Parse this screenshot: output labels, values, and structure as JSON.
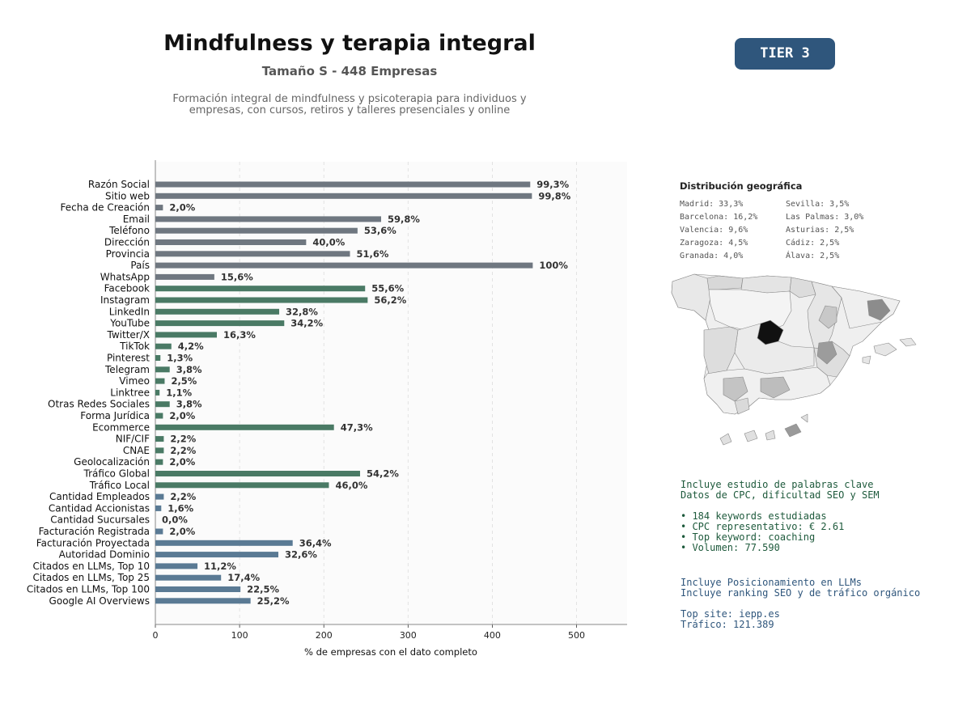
{
  "header": {
    "title": "Mindfulness y terapia integral",
    "subtitle": "Tamaño S - 448 Empresas",
    "description_lines": [
      "Formación integral de mindfulness y psicoterapia para individuos y",
      "empresas, con cursos, retiros y talleres presenciales y online"
    ],
    "tier": "TIER 3"
  },
  "colors": {
    "gray": "#6f7780",
    "green": "#4a7a65",
    "blue": "#5a7a94",
    "tier_bg": "#2f567c"
  },
  "chart_data": {
    "type": "bar",
    "orientation": "horizontal",
    "xlabel": "% de empresas con el dato completo",
    "xlim": [
      0,
      560
    ],
    "xticks": [
      0,
      100,
      200,
      300,
      400,
      500
    ],
    "grid": true,
    "categories": [
      "Razón Social",
      "Sitio web",
      "Fecha de Creación",
      "Email",
      "Teléfono",
      "Dirección",
      "Provincia",
      "País",
      "WhatsApp",
      "Facebook",
      "Instagram",
      "LinkedIn",
      "YouTube",
      "Twitter/X",
      "TikTok",
      "Pinterest",
      "Telegram",
      "Vimeo",
      "Linktree",
      "Otras Redes Sociales",
      "Forma Jurídica",
      "Ecommerce",
      "NIF/CIF",
      "CNAE",
      "Geolocalización",
      "Tráfico Global",
      "Tráfico Local",
      "Cantidad Empleados",
      "Cantidad Accionistas",
      "Cantidad Sucursales",
      "Facturación Registrada",
      "Facturación Proyectada",
      "Autoridad Dominio",
      "Citados en LLMs, Top 10",
      "Citados en LLMs, Top 25",
      "Citados en LLMs, Top 100",
      "Google AI Overviews"
    ],
    "values": [
      445,
      447,
      9,
      268,
      240,
      179,
      231,
      448,
      70,
      249,
      252,
      147,
      153,
      73,
      19,
      6,
      17,
      11,
      5,
      17,
      9,
      212,
      10,
      10,
      9,
      243,
      206,
      10,
      7,
      0,
      9,
      163,
      146,
      50,
      78,
      101,
      113
    ],
    "labels": [
      "99,3%",
      "99,8%",
      "2,0%",
      "59,8%",
      "53,6%",
      "40,0%",
      "51,6%",
      "100%",
      "15,6%",
      "55,6%",
      "56,2%",
      "32,8%",
      "34,2%",
      "16,3%",
      "4,2%",
      "1,3%",
      "3,8%",
      "2,5%",
      "1,1%",
      "3,8%",
      "2,0%",
      "47,3%",
      "2,2%",
      "2,2%",
      "2,0%",
      "54,2%",
      "46,0%",
      "2,2%",
      "1,6%",
      "0,0%",
      "2,0%",
      "36,4%",
      "32,6%",
      "11,2%",
      "17,4%",
      "22,5%",
      "25,2%"
    ],
    "groups": [
      "gray",
      "gray",
      "gray",
      "gray",
      "gray",
      "gray",
      "gray",
      "gray",
      "gray",
      "green",
      "green",
      "green",
      "green",
      "green",
      "green",
      "green",
      "green",
      "green",
      "green",
      "green",
      "green",
      "green",
      "green",
      "green",
      "green",
      "green",
      "green",
      "blue",
      "blue",
      "blue",
      "blue",
      "blue",
      "blue",
      "blue",
      "blue",
      "blue",
      "blue"
    ]
  },
  "geo": {
    "title": "Distribución geográfica",
    "col1": [
      "Madrid: 33,3%",
      "Barcelona: 16,2%",
      "Valencia: 9,6%",
      "Zaragoza: 4,5%",
      "Granada: 4,0%"
    ],
    "col2": [
      "Sevilla: 3,5%",
      "Las Palmas: 3,0%",
      "Asturias: 2,5%",
      "Cádiz: 2,5%",
      "Álava: 2,5%"
    ]
  },
  "seo": {
    "line1": "Incluye estudio de palabras clave",
    "line2": "Datos de CPC, dificultad SEO y SEM",
    "bullet1": "• 184 keywords estudiadas",
    "bullet2": "• CPC representativo: € 2.61",
    "bullet3": "• Top keyword: coaching",
    "bullet4": "• Volumen: 77.590"
  },
  "llm": {
    "line1": "Incluye Posicionamiento en LLMs",
    "line2": "Incluye ranking SEO y de tráfico orgánico",
    "line3": "Top site: iepp.es",
    "line4": "Tráfico: 121.389"
  }
}
